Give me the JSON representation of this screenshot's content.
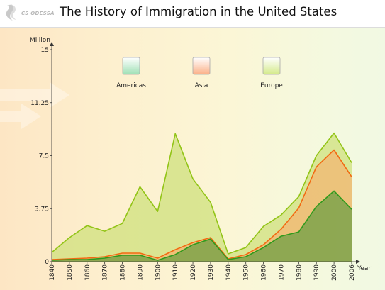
{
  "header": {
    "logo_text": "CS ODESSA",
    "title": "The History of Immigration in the United States"
  },
  "colors": {
    "americas_line": "#2f9a1c",
    "americas_fill": "#7b9a3a",
    "asia_line": "#f26a12",
    "asia_fill": "#e9b05a",
    "europe_line": "#92c417",
    "europe_fill": "#cfe07c"
  },
  "chart_data": {
    "type": "area",
    "stacked": true,
    "x": [
      "1840",
      "1850",
      "1860",
      "1870",
      "1880",
      "1890",
      "1900",
      "1910",
      "1920",
      "1930",
      "1940",
      "1950",
      "1960",
      "1970",
      "1980",
      "1990",
      "2000",
      "2006"
    ],
    "xlabel": "Year",
    "ylabel": "Million",
    "ylim": [
      0,
      15
    ],
    "yticks": [
      "0",
      "3.75",
      "7.5",
      "11.25",
      "15"
    ],
    "legend_position": "top",
    "series": [
      {
        "name": "Americas",
        "values": [
          0.1,
          0.15,
          0.15,
          0.25,
          0.45,
          0.45,
          0.1,
          0.5,
          1.2,
          1.6,
          0.15,
          0.35,
          1.0,
          1.8,
          2.1,
          3.9,
          5.0,
          3.7
        ]
      },
      {
        "name": "Asia",
        "values": [
          0.05,
          0.05,
          0.1,
          0.1,
          0.15,
          0.15,
          0.15,
          0.35,
          0.15,
          0.1,
          0.05,
          0.15,
          0.2,
          0.5,
          1.7,
          2.8,
          2.9,
          2.3
        ]
      },
      {
        "name": "Europe",
        "values": [
          0.5,
          1.5,
          2.3,
          1.8,
          2.1,
          4.7,
          3.3,
          8.2,
          4.5,
          2.5,
          0.35,
          0.5,
          1.3,
          1.0,
          0.8,
          0.8,
          1.2,
          1.0
        ]
      }
    ]
  }
}
